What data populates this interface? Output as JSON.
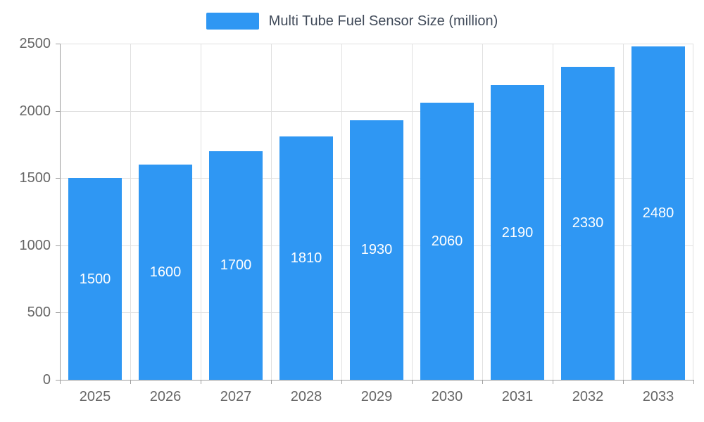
{
  "chart_data": {
    "type": "bar",
    "title": "Multi Tube Fuel Sensor Size (million)",
    "categories": [
      "2025",
      "2026",
      "2027",
      "2028",
      "2029",
      "2030",
      "2031",
      "2032",
      "2033"
    ],
    "values": [
      1500,
      1600,
      1700,
      1810,
      1930,
      2060,
      2190,
      2330,
      2480
    ],
    "xlabel": "",
    "ylabel": "",
    "ylim": [
      0,
      2500
    ],
    "ytick_step": 500,
    "grid": true,
    "legend_position": "top",
    "value_labels": "inside-center",
    "colors": {
      "bar": "#2f97f3",
      "grid": "#e0e0e0",
      "axis": "#9e9e9e",
      "tick_label": "#666666",
      "legend_text": "#404a59",
      "value_label": "#ffffff",
      "background": "#ffffff"
    }
  }
}
